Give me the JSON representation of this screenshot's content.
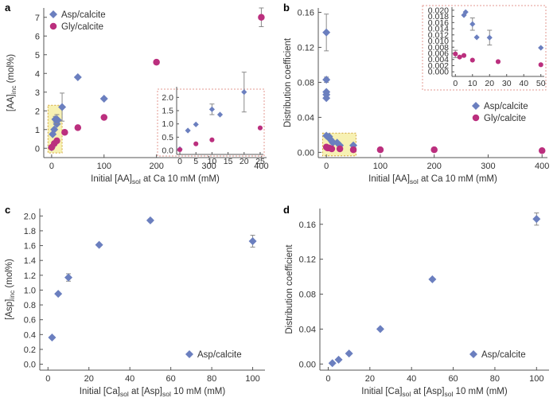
{
  "colors": {
    "asp": "#6b7fbf",
    "gly": "#bb2f7e",
    "axis": "#555555",
    "error": "#8a8a8a",
    "highlight_fill": "#f7f1b3",
    "highlight_stroke": "#d2a53a",
    "inset_stroke": "#e39a90"
  },
  "chart_data": [
    {
      "panel": "a",
      "type": "scatter",
      "xlabel": "Initial [AA]",
      "xlabel_sub": "sol",
      "xlabel_suffix": " at Ca 10 mM (mM)",
      "ylabel": "[AA]",
      "ylabel_sub": "inc",
      "ylabel_suffix": " (mol%)",
      "xlim": [
        -15,
        410
      ],
      "ylim": [
        -0.5,
        7.5
      ],
      "xticks": [
        "0",
        "100",
        "200",
        "300",
        "400"
      ],
      "yticks": [
        "0",
        "1",
        "2",
        "3",
        "4",
        "5",
        "6",
        "7"
      ],
      "legend_position": "top-left",
      "series": [
        {
          "name": "Asp/calcite",
          "marker": "diamond",
          "x": [
            0,
            2,
            5,
            7,
            10,
            10,
            12,
            20,
            50,
            100
          ],
          "y": [
            0.05,
            0.75,
            1.0,
            1.55,
            1.3,
            1.55,
            1.5,
            2.2,
            3.8,
            2.65
          ],
          "err": [
            0,
            0,
            0,
            0.15,
            0,
            0.25,
            0,
            0.75,
            0,
            0
          ]
        },
        {
          "name": "Gly/calcite",
          "marker": "circle",
          "x": [
            0,
            5,
            10,
            25,
            50,
            100,
            200,
            400
          ],
          "y": [
            0.05,
            0.25,
            0.4,
            0.85,
            1.1,
            1.65,
            4.6,
            7.0
          ],
          "err": [
            0,
            0,
            0,
            0,
            0,
            0,
            0,
            0.5
          ]
        }
      ],
      "inset": {
        "xlim": [
          -1,
          26
        ],
        "ylim": [
          -0.15,
          2.4
        ],
        "xticks": [
          "0",
          "5",
          "10",
          "15",
          "20",
          "25"
        ],
        "yticks": [
          "0.0",
          "0.5",
          "1.0",
          "1.5",
          "2.0"
        ],
        "series": [
          {
            "name": "Asp/calcite",
            "marker": "diamond",
            "x": [
              0,
              2.5,
              5,
              10,
              12.5,
              20
            ],
            "y": [
              0.05,
              0.75,
              0.98,
              1.55,
              1.35,
              2.2
            ],
            "err": [
              0,
              0,
              0,
              0.2,
              0,
              0.75
            ]
          },
          {
            "name": "Gly/calcite",
            "marker": "circle",
            "x": [
              0,
              5,
              10,
              25
            ],
            "y": [
              0.03,
              0.25,
              0.4,
              0.85
            ],
            "err": [
              0,
              0,
              0,
              0
            ]
          }
        ]
      }
    },
    {
      "panel": "b",
      "type": "scatter",
      "xlabel": "Initial [AA]",
      "xlabel_sub": "sol",
      "xlabel_suffix": " at Ca 10 mM (mM)",
      "ylabel": "Distribution coefficient",
      "xlim": [
        -15,
        410
      ],
      "ylim": [
        -0.006,
        0.165
      ],
      "xticks": [
        "0",
        "100",
        "200",
        "300",
        "400"
      ],
      "yticks": [
        "0.00",
        "0.04",
        "0.08",
        "0.12",
        "0.16"
      ],
      "legend_position": "center-right",
      "series": [
        {
          "name": "Asp/calcite",
          "marker": "diamond",
          "x": [
            0,
            0,
            0,
            0,
            0,
            0,
            5,
            7,
            10,
            12,
            20,
            25,
            50
          ],
          "y": [
            0.137,
            0.083,
            0.069,
            0.066,
            0.062,
            0.019,
            0.018,
            0.015,
            0.013,
            0.011,
            0.011,
            0.008,
            0.008
          ],
          "err": [
            0.021,
            0.003,
            0,
            0,
            0,
            0,
            0,
            0,
            0,
            0,
            0,
            0,
            0
          ]
        },
        {
          "name": "Gly/calcite",
          "marker": "circle",
          "x": [
            0,
            2,
            5,
            10,
            25,
            50,
            100,
            200,
            400
          ],
          "y": [
            0.006,
            0.005,
            0.005,
            0.004,
            0.004,
            0.003,
            0.003,
            0.003,
            0.002
          ],
          "err": [
            0,
            0,
            0,
            0,
            0,
            0,
            0,
            0,
            0
          ]
        }
      ],
      "inset": {
        "xlim": [
          -2,
          52
        ],
        "ylim": [
          -0.0015,
          0.021
        ],
        "xticks": [
          "0",
          "10",
          "20",
          "30",
          "40",
          "50"
        ],
        "yticks": [
          "0.000",
          "0.002",
          "0.004",
          "0.006",
          "0.008",
          "0.010",
          "0.012",
          "0.014",
          "0.016",
          "0.018",
          "0.020"
        ],
        "series": [
          {
            "name": "Asp/calcite",
            "marker": "diamond",
            "x": [
              5,
              6,
              10,
              12.5,
              20,
              50
            ],
            "y": [
              0.0184,
              0.0194,
              0.0155,
              0.0112,
              0.0111,
              0.0078
            ],
            "err": [
              0,
              0,
              0.002,
              0,
              0.0024,
              0
            ]
          },
          {
            "name": "Gly/calcite",
            "marker": "circle",
            "x": [
              0,
              2.5,
              5,
              10,
              25,
              50
            ],
            "y": [
              0.0058,
              0.0048,
              0.0053,
              0.0038,
              0.0033,
              0.0023
            ],
            "err": [
              0.0012,
              0,
              0,
              0,
              0,
              0
            ]
          }
        ]
      }
    },
    {
      "panel": "c",
      "type": "scatter",
      "xlabel": "Initial [Ca]",
      "xlabel_sub": "sol",
      "xlabel_suffix": " at [Asp]",
      "xlabel_sub2": "sol",
      "xlabel_suffix2": " 10 mM (mM)",
      "ylabel": "[Asp]",
      "ylabel_sub": "inc",
      "ylabel_suffix": " (mol%)",
      "xlim": [
        -4,
        106
      ],
      "ylim": [
        -0.08,
        2.1
      ],
      "xticks": [
        "0",
        "20",
        "40",
        "60",
        "80",
        "100"
      ],
      "yticks": [
        "0.0",
        "0.2",
        "0.4",
        "0.6",
        "0.8",
        "1.0",
        "1.2",
        "1.4",
        "1.6",
        "1.8",
        "2.0"
      ],
      "legend_position": "bottom-right",
      "series": [
        {
          "name": "Asp/calcite",
          "marker": "diamond",
          "x": [
            2,
            5,
            10,
            25,
            50,
            100
          ],
          "y": [
            0.36,
            0.95,
            1.17,
            1.61,
            1.94,
            1.66
          ],
          "err": [
            0,
            0,
            0.05,
            0,
            0.02,
            0.08
          ]
        }
      ]
    },
    {
      "panel": "d",
      "type": "scatter",
      "xlabel": "Initial [Ca]",
      "xlabel_sub": "sol",
      "xlabel_suffix": " at [Asp]",
      "xlabel_sub2": "sol",
      "xlabel_suffix2": " 10 mM (mM)",
      "ylabel": "Distribution coefficient",
      "xlim": [
        -4,
        106
      ],
      "ylim": [
        -0.007,
        0.178
      ],
      "xticks": [
        "0",
        "20",
        "40",
        "60",
        "80",
        "100"
      ],
      "yticks": [
        "0.00",
        "0.04",
        "0.08",
        "0.12",
        "0.16"
      ],
      "legend_position": "bottom-right",
      "series": [
        {
          "name": "Asp/calcite",
          "marker": "diamond",
          "x": [
            2,
            5,
            10,
            25,
            50,
            100
          ],
          "y": [
            0.001,
            0.005,
            0.012,
            0.04,
            0.097,
            0.166
          ],
          "err": [
            0,
            0,
            0,
            0,
            0,
            0.007
          ]
        }
      ]
    }
  ]
}
